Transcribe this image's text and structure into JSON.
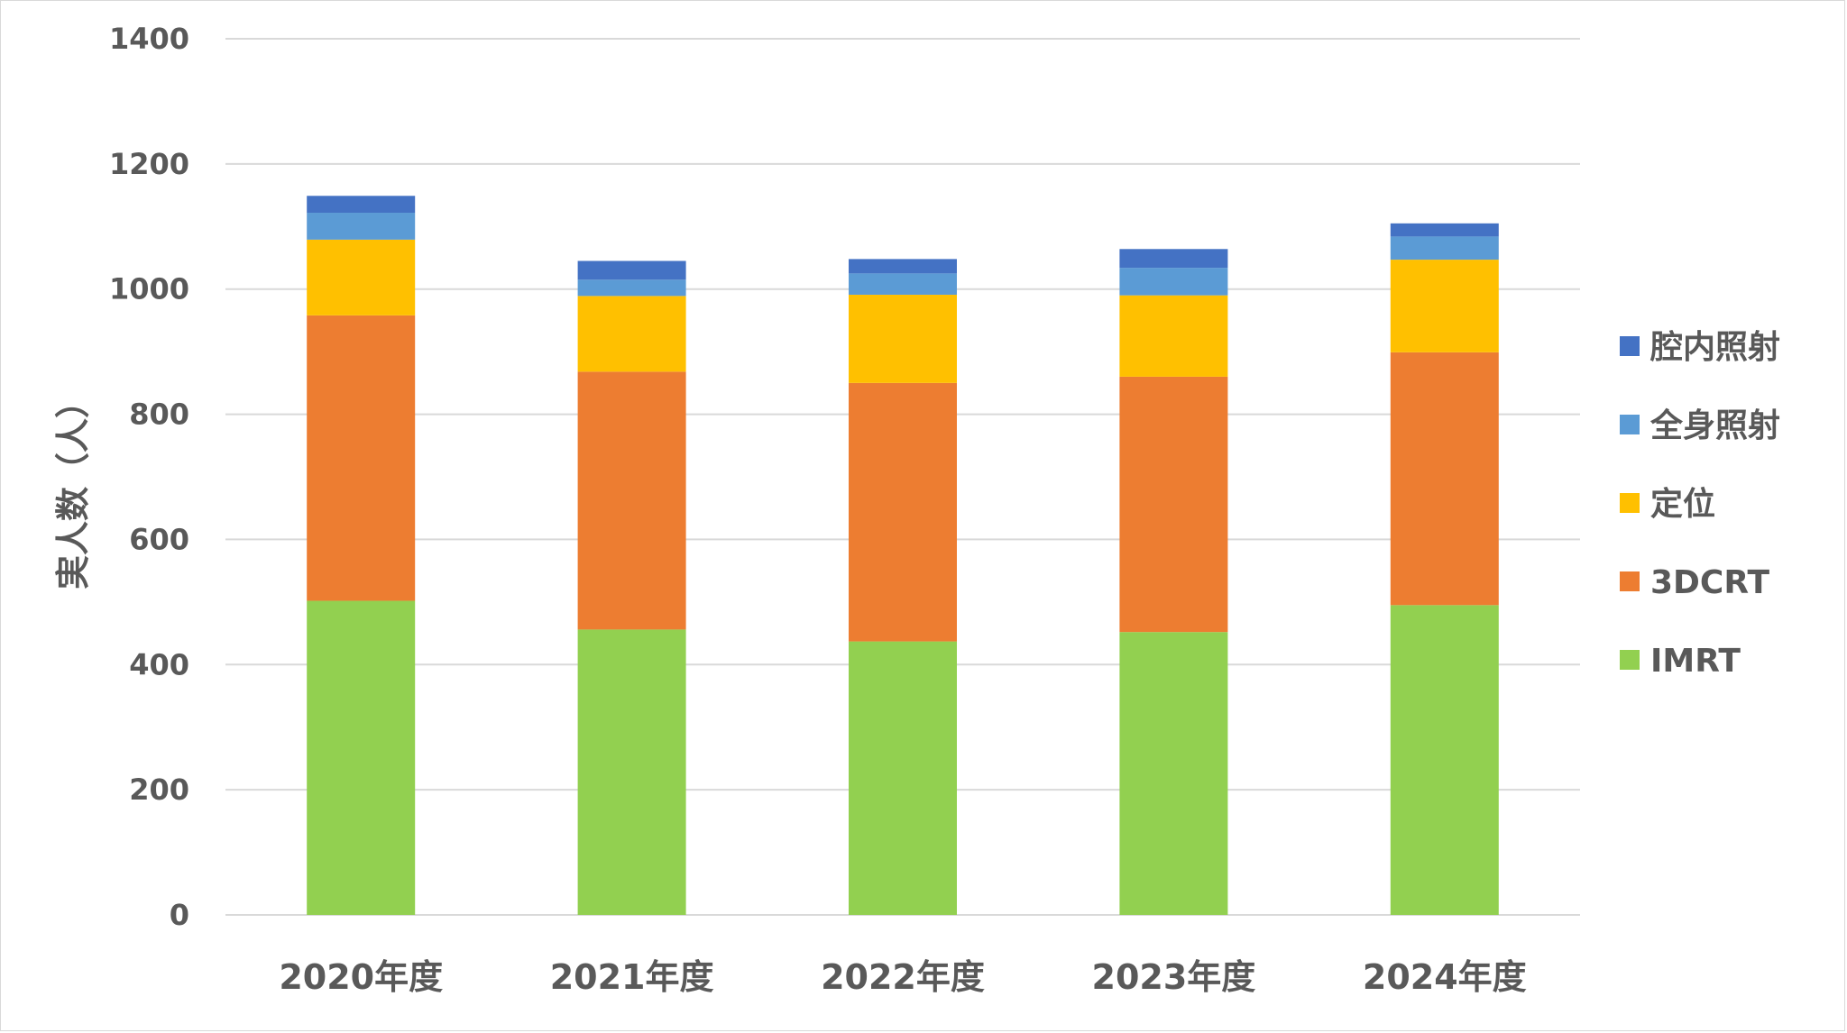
{
  "chart_data": {
    "type": "bar",
    "stacked": true,
    "categories": [
      "2020年度",
      "2021年度",
      "2022年度",
      "2023年度",
      "2024年度"
    ],
    "series": [
      {
        "name": "IMRT",
        "color": "#92d050",
        "values": [
          502,
          456,
          437,
          452,
          495
        ]
      },
      {
        "name": "3DCRT",
        "color": "#ed7d31",
        "values": [
          456,
          412,
          413,
          408,
          404
        ]
      },
      {
        "name": "定位",
        "color": "#ffc000",
        "values": [
          121,
          121,
          141,
          130,
          148
        ]
      },
      {
        "name": "全身照射",
        "color": "#5b9bd5",
        "values": [
          43,
          26,
          34,
          44,
          37
        ]
      },
      {
        "name": "腔内照射",
        "color": "#4472c4",
        "values": [
          27,
          30,
          23,
          30,
          21
        ]
      }
    ],
    "ylabel": "実人数（人）",
    "xlabel": "",
    "ylim": [
      0,
      1400
    ],
    "yticks": [
      0,
      200,
      400,
      600,
      800,
      1000,
      1200,
      1400
    ],
    "grid": true,
    "legend_position": "right",
    "legend_order": [
      "腔内照射",
      "全身照射",
      "定位",
      "3DCRT",
      "IMRT"
    ]
  }
}
